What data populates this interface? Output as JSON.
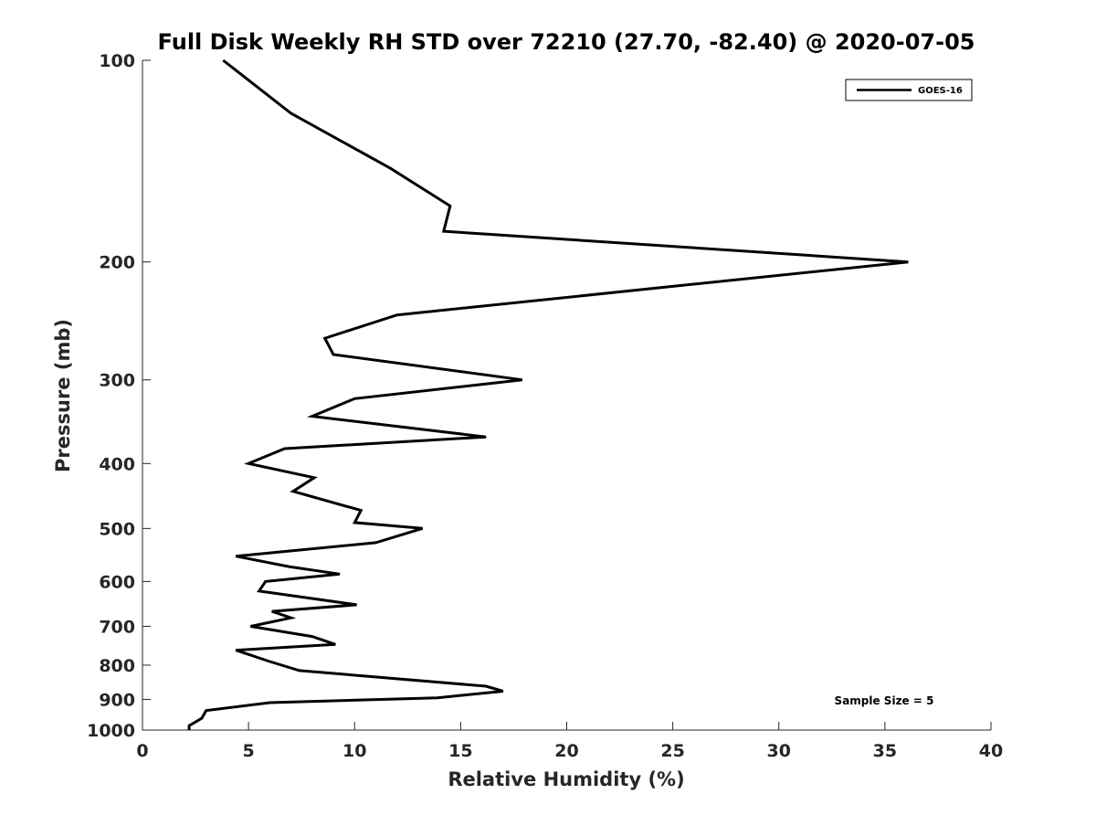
{
  "chart_data": {
    "type": "line",
    "title": "Full Disk Weekly RH STD over 72210 (27.70, -82.40) @ 2020-07-05",
    "xlabel": "Relative Humidity (%)",
    "ylabel": "Pressure (mb)",
    "xlim": [
      0,
      40
    ],
    "ylim": [
      100,
      1000
    ],
    "yscale": "log",
    "yreversed": true,
    "xticks": [
      0,
      5,
      10,
      15,
      20,
      25,
      30,
      35,
      40
    ],
    "yticks": [
      100,
      200,
      300,
      400,
      500,
      600,
      700,
      800,
      900,
      1000
    ],
    "legend": {
      "position": "top-right",
      "entries": [
        "GOES-16"
      ]
    },
    "annotations": [
      {
        "text": "Sample Size = 5",
        "position": "bottom-right"
      }
    ],
    "series": [
      {
        "name": "GOES-16",
        "color": "#000000",
        "x": [
          3.8,
          7.0,
          11.7,
          14.5,
          14.2,
          36.1,
          12.0,
          8.6,
          9.0,
          17.9,
          10.0,
          8.0,
          16.2,
          6.7,
          5.0,
          8.1,
          7.1,
          10.3,
          10.0,
          13.2,
          11.0,
          4.4,
          6.9,
          9.3,
          5.8,
          5.5,
          10.1,
          6.1,
          7.0,
          5.1,
          8.0,
          9.1,
          4.4,
          6.0,
          7.4,
          16.2,
          17.0,
          13.9,
          6.0,
          3.0,
          2.8,
          2.2,
          2.2
        ],
        "y": [
          100,
          120,
          145,
          165,
          180,
          200,
          240,
          260,
          275,
          300,
          320,
          340,
          365,
          380,
          400,
          420,
          440,
          470,
          490,
          500,
          525,
          550,
          570,
          585,
          600,
          620,
          650,
          665,
          680,
          700,
          725,
          745,
          760,
          790,
          815,
          860,
          875,
          895,
          910,
          935,
          960,
          985,
          1000
        ]
      }
    ]
  }
}
